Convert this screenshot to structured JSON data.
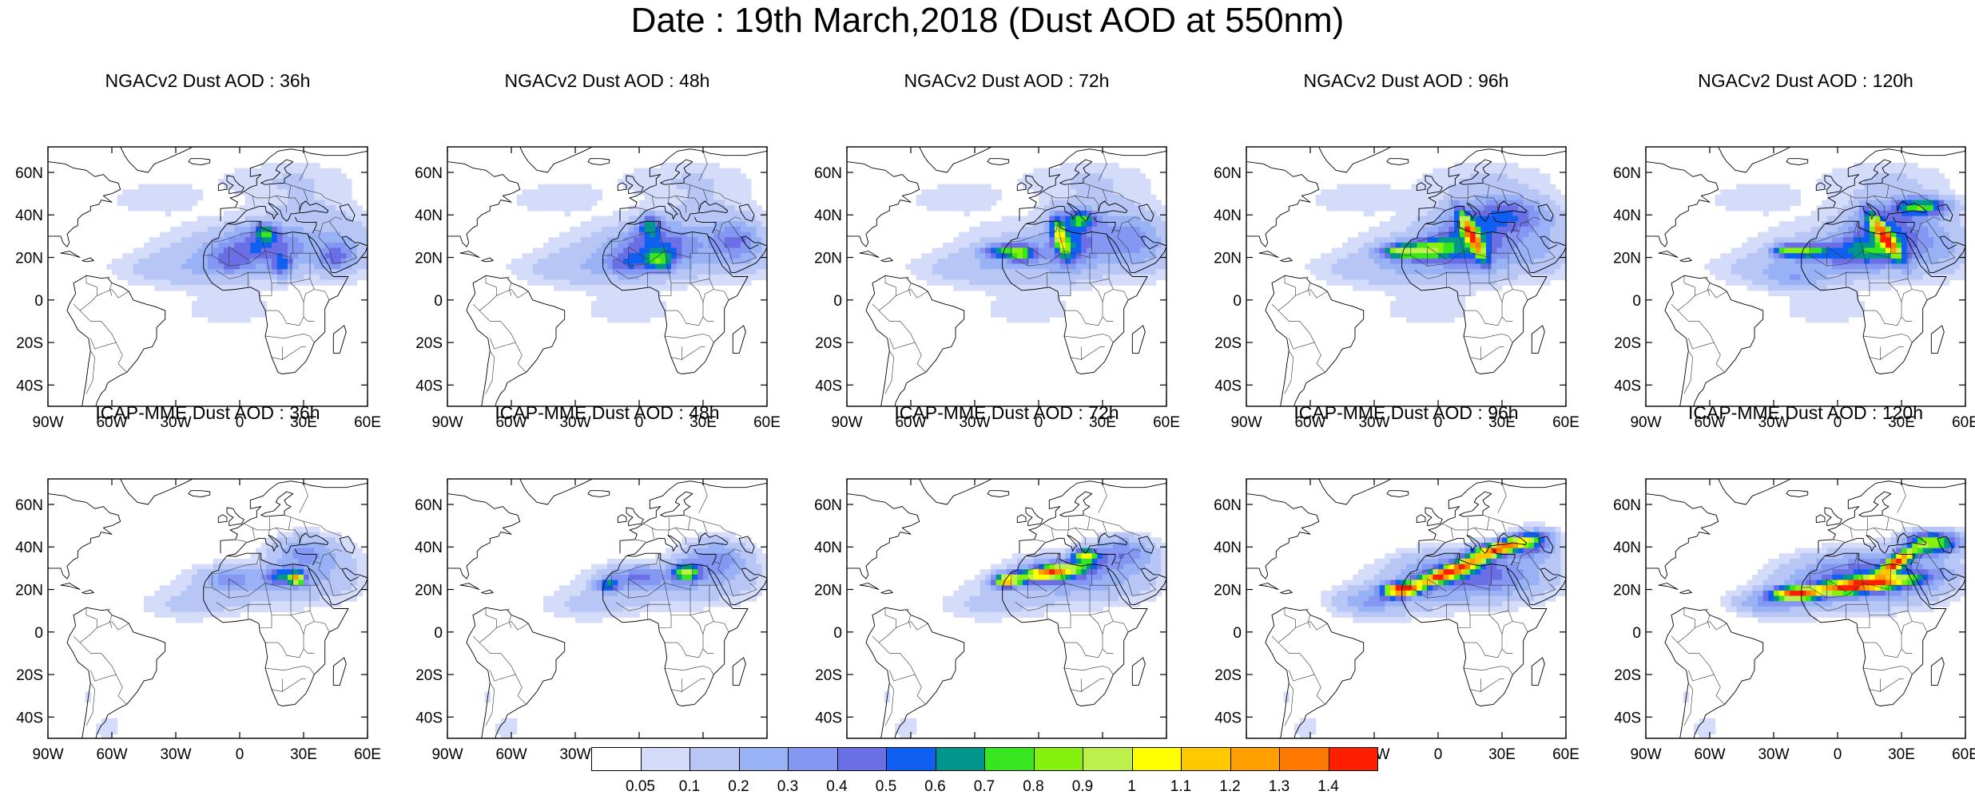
{
  "figure": {
    "title": "Date : 19th March,2018 (Dust AOD at 550nm)"
  },
  "map_axes": {
    "lon_range": [
      -90,
      60
    ],
    "lat_range": [
      -50,
      72
    ],
    "lon_ticks": [
      {
        "value": -90,
        "label": "90W"
      },
      {
        "value": -60,
        "label": "60W"
      },
      {
        "value": -30,
        "label": "30W"
      },
      {
        "value": 0,
        "label": "0"
      },
      {
        "value": 30,
        "label": "30E"
      },
      {
        "value": 60,
        "label": "60E"
      }
    ],
    "lat_ticks": [
      {
        "value": 60,
        "label": "60N"
      },
      {
        "value": 40,
        "label": "40N"
      },
      {
        "value": 20,
        "label": "20N"
      },
      {
        "value": 0,
        "label": "0"
      },
      {
        "value": -20,
        "label": "20S"
      },
      {
        "value": -40,
        "label": "40S"
      }
    ]
  },
  "panels": [
    {
      "title": "NGACv2 Dust AOD : 36h",
      "model": "NGACv2",
      "hour": 36
    },
    {
      "title": "NGACv2 Dust AOD : 48h",
      "model": "NGACv2",
      "hour": 48
    },
    {
      "title": "NGACv2 Dust AOD : 72h",
      "model": "NGACv2",
      "hour": 72
    },
    {
      "title": "NGACv2 Dust AOD : 96h",
      "model": "NGACv2",
      "hour": 96
    },
    {
      "title": "NGACv2 Dust AOD : 120h",
      "model": "NGACv2",
      "hour": 120
    },
    {
      "title": "ICAP-MME Dust AOD : 36h",
      "model": "ICAP-MME",
      "hour": 36
    },
    {
      "title": "ICAP-MME Dust AOD : 48h",
      "model": "ICAP-MME",
      "hour": 48
    },
    {
      "title": "ICAP-MME Dust AOD : 72h",
      "model": "ICAP-MME",
      "hour": 72
    },
    {
      "title": "ICAP-MME Dust AOD : 96h",
      "model": "ICAP-MME",
      "hour": 96
    },
    {
      "title": "ICAP-MME Dust AOD : 120h",
      "model": "ICAP-MME",
      "hour": 120
    }
  ],
  "colorbar": {
    "colors": [
      "#ffffff",
      "#d4dcfa",
      "#b8c6f6",
      "#99b2f6",
      "#8497f2",
      "#6b6fe6",
      "#0f5ff2",
      "#00968c",
      "#37e61e",
      "#86f00f",
      "#bef04b",
      "#ffff00",
      "#ffc800",
      "#ffa000",
      "#ff7800",
      "#ff1e00"
    ],
    "labels": [
      "0.05",
      "0.1",
      "0.2",
      "0.3",
      "0.4",
      "0.5",
      "0.6",
      "0.7",
      "0.8",
      "0.9",
      "1",
      "1.1",
      "1.2",
      "1.3",
      "1.4"
    ]
  }
}
